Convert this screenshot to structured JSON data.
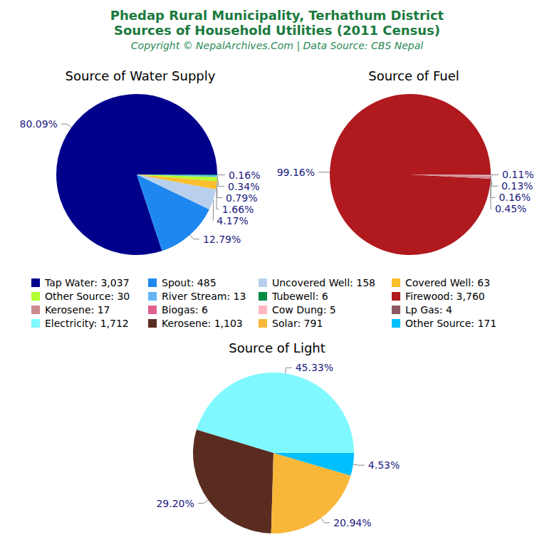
{
  "title": "Phedap Rural Municipality, Terhathum District\nSources of Household Utilities (2011 Census)",
  "subtitle": "Copyright © NepalArchives.Com | Data Source: CBS Nepal",
  "chart_data": [
    {
      "type": "pie",
      "title": "Source of Water Supply",
      "categories": [
        "Tap Water",
        "Spout",
        "Uncovered Well",
        "Covered Well",
        "Other Source",
        "River Stream",
        "Tubewell"
      ],
      "values": [
        3037,
        485,
        158,
        63,
        30,
        13,
        6
      ],
      "legend_labels": [
        "Tap Water: 3,037",
        "Spout: 485",
        "Uncovered Well: 158",
        "Covered Well: 63",
        "Other Source: 30",
        "River Stream: 13",
        "Tubewell: 6"
      ],
      "percent_labels": [
        "80.09%",
        "12.79%",
        "4.17%",
        "1.66%",
        "0.79%",
        "0.34%",
        "0.16%"
      ],
      "colors": [
        "#00008b",
        "#1e88f0",
        "#b8d0ee",
        "#f9bf2e",
        "#b2ff2f",
        "#64b5f6",
        "#008b45"
      ],
      "data_labels": true
    },
    {
      "type": "pie",
      "title": "Source of Fuel",
      "categories": [
        "Firewood",
        "Kerosene",
        "Biogas",
        "Cow Dung",
        "Lp Gas"
      ],
      "values": [
        3760,
        17,
        6,
        5,
        4
      ],
      "legend_labels": [
        "Firewood: 3,760",
        "Kerosene: 17",
        "Biogas: 6",
        "Cow Dung: 5",
        "Lp Gas: 4"
      ],
      "percent_labels": [
        "99.16%",
        "0.45%",
        "0.16%",
        "0.13%",
        "0.11%"
      ],
      "colors": [
        "#b0191e",
        "#cd8a8f",
        "#e06090",
        "#ffb6c1",
        "#8b5a62"
      ],
      "data_labels": true
    },
    {
      "type": "pie",
      "title": "Source of Light",
      "categories": [
        "Electricity",
        "Kerosene",
        "Solar",
        "Other Source"
      ],
      "values": [
        1712,
        1103,
        791,
        171
      ],
      "legend_labels": [
        "Electricity: 1,712",
        "Kerosene: 1,103",
        "Solar: 791",
        "Other Source: 171"
      ],
      "percent_labels": [
        "45.33%",
        "29.20%",
        "20.94%",
        "4.53%"
      ],
      "colors": [
        "#7ff9ff",
        "#5a2c20",
        "#f8b738",
        "#00bfff"
      ],
      "data_labels": true
    }
  ]
}
